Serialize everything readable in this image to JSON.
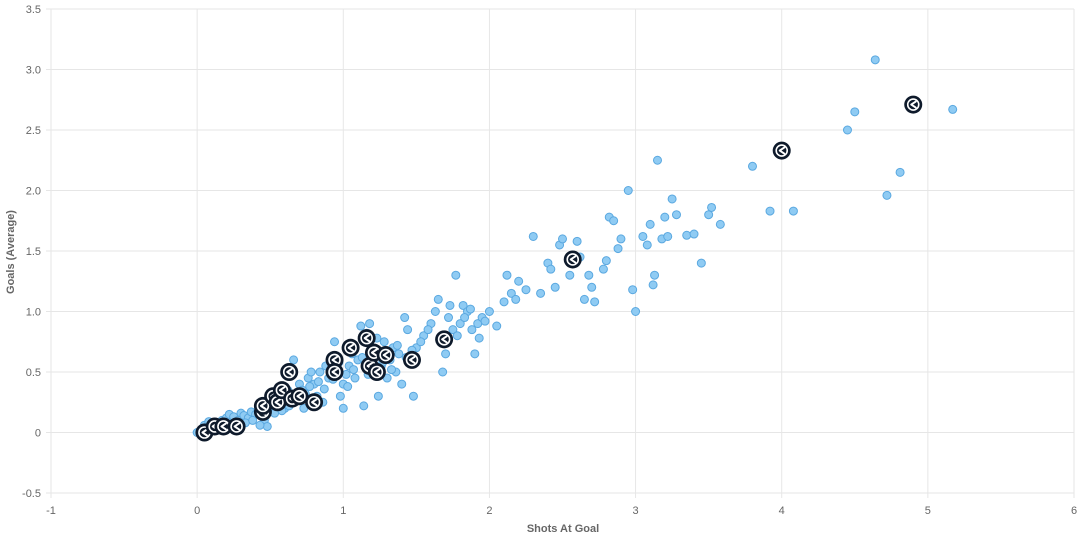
{
  "colors": {
    "point_fill": "#8fcbf3",
    "point_stroke": "#5aa8e0",
    "highlight_fill": "#0e1a2b",
    "highlight_icon": "#ffffff",
    "grid": "#e6e6e6",
    "text": "#666666"
  },
  "chart_data": {
    "type": "scatter",
    "title": "",
    "xlabel": "Shots At Goal",
    "ylabel": "Goals (Average)",
    "xlim": [
      -1,
      6
    ],
    "ylim": [
      -0.5,
      3.5
    ],
    "x_ticks": [
      -1,
      0,
      1,
      2,
      3,
      4,
      5,
      6
    ],
    "y_ticks": [
      -0.5,
      0,
      0.5,
      1.0,
      1.5,
      2.0,
      2.5,
      3.0,
      3.5
    ],
    "x_tick_labels": [
      "-1",
      "0",
      "1",
      "2",
      "3",
      "4",
      "5",
      "6"
    ],
    "y_tick_labels": [
      "-0.5",
      "0",
      "0.5",
      "1.0",
      "1.5",
      "2.0",
      "2.5",
      "3.0",
      "3.5"
    ],
    "grid": true,
    "legend": "none",
    "series": [
      {
        "points": [
          [
            0.0,
            0.0
          ],
          [
            0.03,
            0.01
          ],
          [
            0.06,
            0.02
          ],
          [
            0.1,
            0.03
          ],
          [
            0.12,
            0.05
          ],
          [
            0.15,
            0.08
          ],
          [
            0.17,
            0.1
          ],
          [
            0.2,
            0.12
          ],
          [
            0.22,
            0.15
          ],
          [
            0.25,
            0.13
          ],
          [
            0.28,
            0.1
          ],
          [
            0.3,
            0.16
          ],
          [
            0.32,
            0.14
          ],
          [
            0.35,
            0.12
          ],
          [
            0.37,
            0.17
          ],
          [
            0.4,
            0.15
          ],
          [
            0.42,
            0.2
          ],
          [
            0.44,
            0.18
          ],
          [
            0.46,
            0.1
          ],
          [
            0.48,
            0.05
          ],
          [
            0.5,
            0.22
          ],
          [
            0.52,
            0.25
          ],
          [
            0.55,
            0.2
          ],
          [
            0.57,
            0.28
          ],
          [
            0.6,
            0.3
          ],
          [
            0.6,
            0.2
          ],
          [
            0.62,
            0.35
          ],
          [
            0.64,
            0.25
          ],
          [
            0.66,
            0.6
          ],
          [
            0.67,
            0.28
          ],
          [
            0.7,
            0.4
          ],
          [
            0.72,
            0.35
          ],
          [
            0.74,
            0.32
          ],
          [
            0.76,
            0.45
          ],
          [
            0.78,
            0.5
          ],
          [
            0.8,
            0.4
          ],
          [
            0.82,
            0.3
          ],
          [
            0.84,
            0.5
          ],
          [
            0.86,
            0.25
          ],
          [
            0.88,
            0.55
          ],
          [
            0.9,
            0.45
          ],
          [
            0.92,
            0.62
          ],
          [
            0.94,
            0.75
          ],
          [
            0.96,
            0.5
          ],
          [
            0.98,
            0.3
          ],
          [
            1.0,
            0.4
          ],
          [
            1.0,
            0.2
          ],
          [
            1.02,
            0.48
          ],
          [
            1.04,
            0.55
          ],
          [
            1.06,
            0.65
          ],
          [
            1.08,
            0.45
          ],
          [
            1.1,
            0.6
          ],
          [
            1.12,
            0.88
          ],
          [
            1.14,
            0.22
          ],
          [
            1.16,
            0.82
          ],
          [
            1.18,
            0.9
          ],
          [
            1.2,
            0.7
          ],
          [
            1.22,
            0.65
          ],
          [
            1.24,
            0.3
          ],
          [
            1.26,
            0.55
          ],
          [
            1.28,
            0.75
          ],
          [
            1.3,
            0.45
          ],
          [
            1.32,
            0.6
          ],
          [
            1.34,
            0.7
          ],
          [
            1.36,
            0.5
          ],
          [
            1.38,
            0.65
          ],
          [
            1.4,
            0.4
          ],
          [
            1.42,
            0.95
          ],
          [
            1.44,
            0.85
          ],
          [
            1.46,
            0.6
          ],
          [
            1.48,
            0.3
          ],
          [
            1.5,
            0.7
          ],
          [
            1.55,
            0.8
          ],
          [
            1.6,
            0.9
          ],
          [
            1.65,
            1.1
          ],
          [
            1.68,
            0.5
          ],
          [
            1.7,
            0.65
          ],
          [
            1.72,
            0.95
          ],
          [
            1.75,
            0.85
          ],
          [
            1.77,
            1.3
          ],
          [
            1.8,
            0.9
          ],
          [
            1.82,
            1.05
          ],
          [
            1.85,
            1.0
          ],
          [
            1.88,
            0.85
          ],
          [
            1.9,
            0.65
          ],
          [
            1.92,
            0.9
          ],
          [
            1.95,
            0.95
          ],
          [
            2.0,
            1.0
          ],
          [
            2.05,
            0.88
          ],
          [
            2.1,
            1.08
          ],
          [
            2.12,
            1.3
          ],
          [
            2.15,
            1.15
          ],
          [
            2.18,
            1.1
          ],
          [
            2.2,
            1.25
          ],
          [
            2.25,
            1.18
          ],
          [
            2.3,
            1.62
          ],
          [
            2.35,
            1.15
          ],
          [
            2.4,
            1.4
          ],
          [
            2.42,
            1.35
          ],
          [
            2.45,
            1.2
          ],
          [
            2.48,
            1.55
          ],
          [
            2.5,
            1.6
          ],
          [
            2.55,
            1.3
          ],
          [
            2.6,
            1.58
          ],
          [
            2.62,
            1.45
          ],
          [
            2.65,
            1.1
          ],
          [
            2.68,
            1.3
          ],
          [
            2.7,
            1.2
          ],
          [
            2.72,
            1.08
          ],
          [
            2.78,
            1.35
          ],
          [
            2.8,
            1.42
          ],
          [
            2.82,
            1.78
          ],
          [
            2.85,
            1.75
          ],
          [
            2.88,
            1.52
          ],
          [
            2.9,
            1.6
          ],
          [
            2.95,
            2.0
          ],
          [
            2.98,
            1.18
          ],
          [
            3.0,
            1.0
          ],
          [
            3.05,
            1.62
          ],
          [
            3.08,
            1.55
          ],
          [
            3.1,
            1.72
          ],
          [
            3.12,
            1.22
          ],
          [
            3.13,
            1.3
          ],
          [
            3.15,
            2.25
          ],
          [
            3.18,
            1.6
          ],
          [
            3.2,
            1.78
          ],
          [
            3.22,
            1.62
          ],
          [
            3.25,
            1.93
          ],
          [
            3.28,
            1.8
          ],
          [
            3.35,
            1.63
          ],
          [
            3.4,
            1.64
          ],
          [
            3.45,
            1.4
          ],
          [
            3.5,
            1.8
          ],
          [
            3.52,
            1.86
          ],
          [
            3.58,
            1.72
          ],
          [
            3.8,
            2.2
          ],
          [
            3.92,
            1.83
          ],
          [
            4.08,
            1.83
          ],
          [
            4.45,
            2.5
          ],
          [
            4.5,
            2.65
          ],
          [
            4.64,
            3.08
          ],
          [
            4.72,
            1.96
          ],
          [
            4.81,
            2.15
          ],
          [
            5.17,
            2.67
          ],
          [
            0.05,
            0.06
          ],
          [
            0.08,
            0.09
          ],
          [
            0.14,
            0.02
          ],
          [
            0.18,
            0.04
          ],
          [
            0.24,
            0.07
          ],
          [
            0.27,
            0.05
          ],
          [
            0.33,
            0.08
          ],
          [
            0.38,
            0.1
          ],
          [
            0.43,
            0.06
          ],
          [
            0.47,
            0.14
          ],
          [
            0.53,
            0.16
          ],
          [
            0.58,
            0.18
          ],
          [
            0.63,
            0.22
          ],
          [
            0.68,
            0.26
          ],
          [
            0.73,
            0.2
          ],
          [
            0.77,
            0.38
          ],
          [
            0.83,
            0.42
          ],
          [
            0.87,
            0.36
          ],
          [
            0.93,
            0.44
          ],
          [
            0.97,
            0.58
          ],
          [
            1.03,
            0.38
          ],
          [
            1.07,
            0.52
          ],
          [
            1.13,
            0.62
          ],
          [
            1.17,
            0.48
          ],
          [
            1.23,
            0.78
          ],
          [
            1.27,
            0.58
          ],
          [
            1.33,
            0.52
          ],
          [
            1.37,
            0.72
          ],
          [
            1.43,
            0.62
          ],
          [
            1.47,
            0.68
          ],
          [
            1.53,
            0.75
          ],
          [
            1.58,
            0.85
          ],
          [
            1.63,
            1.0
          ],
          [
            1.67,
            0.78
          ],
          [
            1.73,
            1.05
          ],
          [
            1.78,
            0.8
          ],
          [
            1.83,
            0.95
          ],
          [
            1.87,
            1.02
          ],
          [
            1.93,
            0.78
          ],
          [
            1.97,
            0.92
          ]
        ]
      },
      {
        "highlighted": true,
        "icon": "team-logo-icon",
        "points": [
          [
            0.05,
            0.0
          ],
          [
            0.12,
            0.05
          ],
          [
            0.18,
            0.05
          ],
          [
            0.27,
            0.05
          ],
          [
            0.45,
            0.17
          ],
          [
            0.45,
            0.22
          ],
          [
            0.52,
            0.3
          ],
          [
            0.55,
            0.25
          ],
          [
            0.58,
            0.35
          ],
          [
            0.63,
            0.5
          ],
          [
            0.65,
            0.28
          ],
          [
            0.7,
            0.3
          ],
          [
            0.8,
            0.25
          ],
          [
            0.94,
            0.6
          ],
          [
            0.94,
            0.5
          ],
          [
            1.05,
            0.7
          ],
          [
            1.16,
            0.78
          ],
          [
            1.18,
            0.55
          ],
          [
            1.21,
            0.66
          ],
          [
            1.23,
            0.5
          ],
          [
            1.29,
            0.64
          ],
          [
            1.47,
            0.6
          ],
          [
            1.69,
            0.77
          ],
          [
            2.57,
            1.43
          ],
          [
            4.0,
            2.33
          ],
          [
            4.9,
            2.71
          ]
        ]
      }
    ]
  }
}
